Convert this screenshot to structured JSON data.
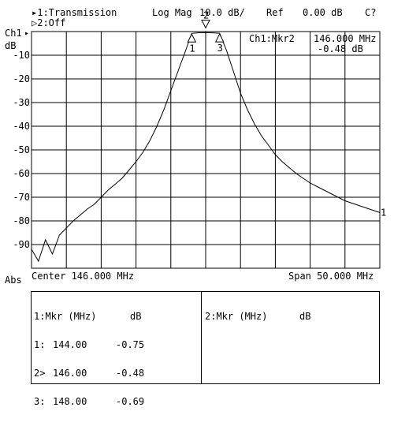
{
  "header": {
    "trace1": "▸1:Transmission",
    "trace2": "▷2:Off",
    "format": "Log Mag",
    "scale": "10.0 dB/",
    "ref_label": "Ref",
    "ref_value": "0.00 dB",
    "status": "C?"
  },
  "axis_labels": {
    "channel": "Ch1",
    "channel_marker": "▸",
    "unit": "dB",
    "abs": "Abs",
    "trace_end_id": "1"
  },
  "marker_readout": {
    "label": "Ch1:Mkr2",
    "frequency": "146.000 MHz",
    "value": "-0.48 dB"
  },
  "footer": {
    "center": "Center 146.000 MHz",
    "span": "Span 50.000 MHz"
  },
  "marker_table": {
    "left_header": [
      "1:Mkr (MHz)",
      "dB"
    ],
    "rows": [
      {
        "id": "1:",
        "freq": "144.00",
        "db": "-0.75"
      },
      {
        "id": "2>",
        "freq": "146.00",
        "db": "-0.48"
      },
      {
        "id": "3:",
        "freq": "148.00",
        "db": "-0.69"
      }
    ],
    "right_header": [
      "2:Mkr (MHz)",
      "dB"
    ]
  },
  "colors": {
    "trace": "#000000",
    "grid": "#000000",
    "background": "#ffffff"
  },
  "chart_data": {
    "type": "line",
    "x_unit": "MHz",
    "y_unit": "dB",
    "xlim": [
      121,
      171
    ],
    "ylim": [
      -100,
      0
    ],
    "grid": true,
    "y_ticks": [
      "-10",
      "-20",
      "-30",
      "-40",
      "-50",
      "-60",
      "-70",
      "-80",
      "-90"
    ],
    "series": [
      {
        "name": "1:Transmission",
        "x": [
          121,
          122,
          123,
          124,
          125,
          126,
          127,
          128,
          129,
          130,
          131,
          132,
          133,
          134,
          135,
          136,
          137,
          138,
          139,
          140,
          141,
          142,
          143,
          144,
          145,
          146,
          147,
          148,
          149,
          150,
          151,
          152,
          153,
          154,
          155,
          156,
          157,
          158,
          159,
          160,
          161,
          162,
          163,
          164,
          165,
          166,
          167,
          168,
          169,
          170,
          171
        ],
        "y": [
          -92,
          -97,
          -88,
          -94,
          -86,
          -83,
          -80,
          -77.5,
          -75,
          -73,
          -70,
          -67,
          -64.5,
          -62,
          -58.5,
          -55,
          -51,
          -46,
          -40,
          -33,
          -25,
          -17,
          -9,
          -0.75,
          -0.5,
          -0.48,
          -0.55,
          -0.69,
          -8,
          -17,
          -26,
          -33,
          -39,
          -44,
          -48,
          -52,
          -55,
          -57.5,
          -60,
          -62,
          -64,
          -65.5,
          -67,
          -68.5,
          -70,
          -71.5,
          -72.5,
          -73.5,
          -74.5,
          -75.5,
          -76.5
        ]
      }
    ],
    "markers": [
      {
        "id": "1",
        "x": 144.0,
        "y": -0.75
      },
      {
        "id": "2",
        "x": 146.0,
        "y": -0.48
      },
      {
        "id": "3",
        "x": 148.0,
        "y": -0.69
      }
    ]
  }
}
